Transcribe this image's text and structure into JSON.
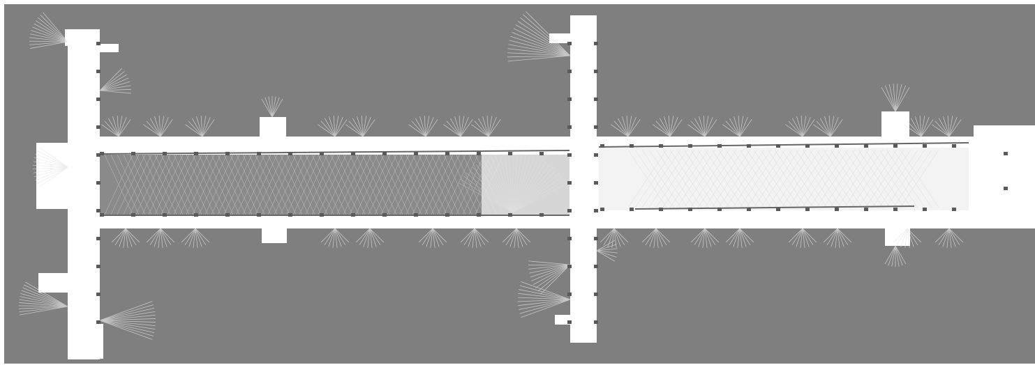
{
  "map": {
    "kind": "occupancy-grid",
    "colors": {
      "unknown": "#7f7f7f",
      "free": "#ffffff",
      "obstacle": "#555555",
      "frame": "#ffffff"
    }
  }
}
